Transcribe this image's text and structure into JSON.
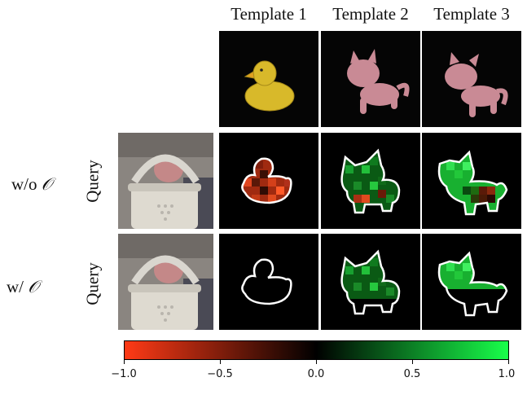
{
  "columns": [
    "Template 1",
    "Template 2",
    "Template 3"
  ],
  "rows": [
    {
      "label_text": "w/o ",
      "label_symbol": "𝒪",
      "query_label": "Query"
    },
    {
      "label_text": "w/ ",
      "label_symbol": "𝒪",
      "query_label": "Query"
    }
  ],
  "colorbar": {
    "ticks": [
      "−1.0",
      "−0.5",
      "0.0",
      "0.5",
      "1.0"
    ],
    "min_color": "#ff3a16",
    "mid_color": "#000000",
    "max_color": "#18ff4a"
  },
  "templates": [
    {
      "object": "duck",
      "color": "#d8b92a"
    },
    {
      "object": "cat",
      "color": "#c98a95"
    },
    {
      "object": "cat",
      "color": "#c98a95"
    }
  ]
}
